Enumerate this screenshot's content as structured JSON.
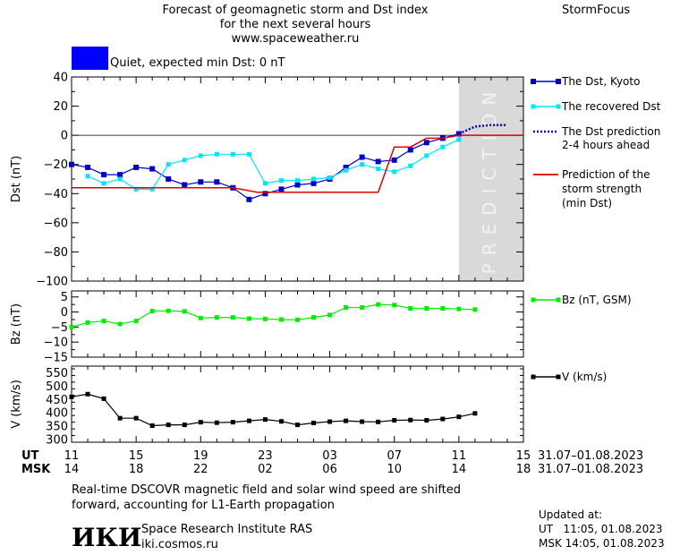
{
  "header": {
    "title_line1": "Forecast of geomagnetic storm and Dst index",
    "title_line2": "for the next several hours",
    "url": "www.spaceweather.ru",
    "brand": "StormFocus",
    "status_text": "Quiet, expected min Dst: 0 nT",
    "status_color": "#0000ff"
  },
  "colors": {
    "dst": "#0000cc",
    "recovered": "#00e5ff",
    "prediction_dots": "#0000cc",
    "strength": "#dd0000",
    "bz": "#00ee00",
    "v": "#000000",
    "prediction_band": "#d9d9d9"
  },
  "prediction_label": "PREDICTION",
  "legend": {
    "dst": "The Dst, Kyoto",
    "recovered": "The recovered Dst",
    "prediction_1": "The Dst prediction",
    "prediction_2": "2-4 hours ahead",
    "strength_1": "Prediction of the",
    "strength_2": "storm strength",
    "strength_3": "(min Dst)",
    "bz": "Bz (nT, GSM)",
    "v": "V (km/s)"
  },
  "time_axis": {
    "ut_label": "UT",
    "msk_label": "MSK",
    "ut_ticks": [
      "11",
      "15",
      "19",
      "23",
      "03",
      "07",
      "11",
      "15"
    ],
    "msk_ticks": [
      "14",
      "18",
      "22",
      "02",
      "06",
      "10",
      "14",
      "18"
    ],
    "ut_range": "31.07–01.08.2023",
    "msk_range": "31.07–01.08.2023"
  },
  "chart_data": [
    {
      "type": "line",
      "ylabel": "Dst (nT)",
      "ylim": [
        -100,
        40
      ],
      "yticks": [
        "40",
        "20",
        "0",
        "−20",
        "−40",
        "−60",
        "−80",
        "−100"
      ],
      "x_unit": "hours since 11 UT 31.07",
      "xlim": [
        0,
        28
      ],
      "prediction_band": [
        24,
        28
      ],
      "series": [
        {
          "name": "The Dst, Kyoto",
          "x": [
            0,
            1,
            2,
            3,
            4,
            5,
            6,
            7,
            8,
            9,
            10,
            11,
            12,
            13,
            14,
            15,
            16,
            17,
            18,
            19,
            20,
            21,
            22,
            23,
            24
          ],
          "values": [
            -20,
            -22,
            -27,
            -27,
            -22,
            -23,
            -30,
            -34,
            -32,
            -32,
            -36,
            -44,
            -40,
            -37,
            -34,
            -33,
            -30,
            -22,
            -15,
            -18,
            -17,
            -10,
            -5,
            -2,
            1
          ]
        },
        {
          "name": "The recovered Dst",
          "x": [
            1,
            2,
            3,
            4,
            5,
            6,
            7,
            8,
            9,
            10,
            11,
            12,
            13,
            14,
            15,
            16,
            17,
            18,
            19,
            20,
            21,
            22,
            23,
            24
          ],
          "values": [
            -28,
            -33,
            -30,
            -37,
            -37,
            -20,
            -17,
            -14,
            -13,
            -13,
            -13,
            -33,
            -31,
            -31,
            -30,
            -29,
            -24,
            -20,
            -23,
            -25,
            -21,
            -14,
            -8,
            -3
          ]
        },
        {
          "name": "The Dst prediction 2-4 hours ahead",
          "x": [
            24,
            25,
            26,
            27
          ],
          "values": [
            1,
            6,
            7,
            7
          ]
        },
        {
          "name": "Prediction of the storm strength (min Dst)",
          "x": [
            0,
            10,
            11.5,
            19,
            20,
            21,
            22,
            23,
            24,
            28
          ],
          "values": [
            -36,
            -36,
            -39,
            -39,
            -8,
            -8,
            -2,
            -2,
            0,
            0
          ]
        }
      ]
    },
    {
      "type": "line",
      "ylabel": "Bz (nT)",
      "ylim": [
        -15,
        8
      ],
      "yticks": [
        "5",
        "0",
        "−5",
        "−10",
        "−15"
      ],
      "series": [
        {
          "name": "Bz (nT, GSM)",
          "x": [
            0,
            1,
            2,
            3,
            4,
            5,
            6,
            7,
            8,
            9,
            10,
            11,
            12,
            13,
            14,
            15,
            16,
            17,
            18,
            19,
            20,
            21,
            22,
            23,
            24,
            25
          ],
          "values": [
            -5,
            -3.5,
            -3,
            -4,
            -3,
            0.3,
            0.4,
            0.2,
            -2,
            -1.8,
            -1.8,
            -2.2,
            -2.3,
            -2.5,
            -2.6,
            -1.8,
            -1,
            1.5,
            1.5,
            2.5,
            2.3,
            1.2,
            1.2,
            1.2,
            1,
            0.8
          ]
        }
      ]
    },
    {
      "type": "line",
      "ylabel": "V (km/s)",
      "ylim": [
        300,
        570
      ],
      "yticks": [
        "550",
        "500",
        "450",
        "400",
        "350",
        "300"
      ],
      "series": [
        {
          "name": "V (km/s)",
          "x": [
            0,
            1,
            2,
            3,
            4,
            5,
            6,
            7,
            8,
            9,
            10,
            11,
            12,
            13,
            14,
            15,
            16,
            17,
            18,
            19,
            20,
            21,
            22,
            23,
            24,
            25
          ],
          "values": [
            460,
            470,
            453,
            380,
            380,
            352,
            355,
            355,
            365,
            363,
            365,
            370,
            375,
            368,
            355,
            362,
            367,
            370,
            367,
            366,
            372,
            373,
            372,
            377,
            385,
            398
          ]
        }
      ]
    }
  ],
  "footer": {
    "note_line1": "Real-time DSCOVR magnetic field and solar wind speed are shifted",
    "note_line2": "forward, accounting for L1-Earth propagation",
    "logo_text": "ИКИ",
    "institute": "Space Research Institute RAS",
    "site": "iki.cosmos.ru",
    "updated_label": "Updated at:",
    "updated_ut": "UT   11:05, 01.08.2023",
    "updated_msk": "MSK 14:05, 01.08.2023"
  }
}
